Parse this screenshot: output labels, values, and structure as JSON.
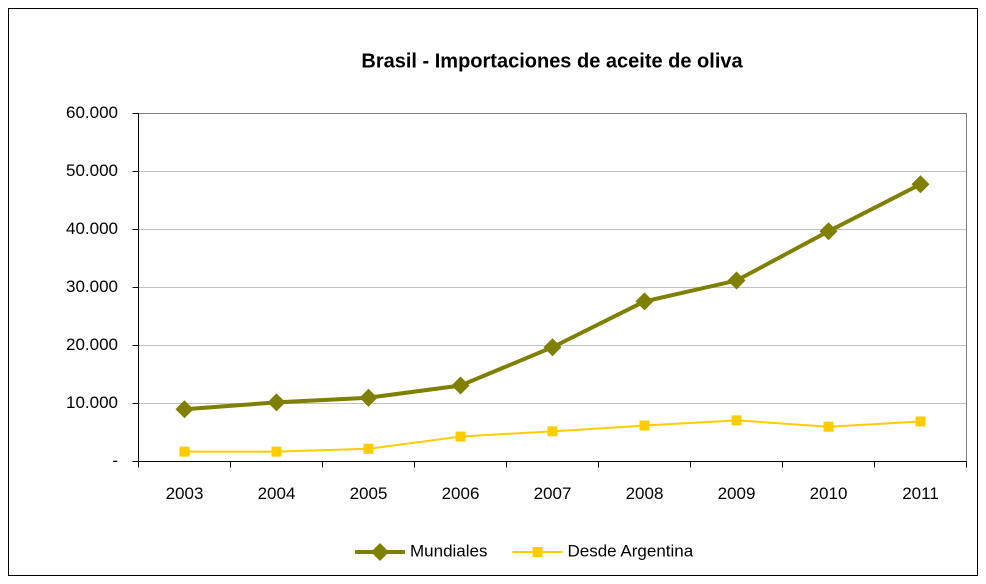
{
  "chart_data": {
    "type": "line",
    "title": "Brasil - Importaciones de aceite de oliva",
    "categories": [
      "2003",
      "2004",
      "2005",
      "2006",
      "2007",
      "2008",
      "2009",
      "2010",
      "2011"
    ],
    "series": [
      {
        "name": "Mundiales",
        "color": "#7f7f00",
        "marker": "diamond",
        "values": [
          9000,
          10200,
          11000,
          13100,
          19700,
          27600,
          31200,
          39700,
          47800
        ]
      },
      {
        "name": "Desde Argentina",
        "color": "#ffcc00",
        "marker": "square",
        "values": [
          1700,
          1700,
          2200,
          4300,
          5200,
          6200,
          7100,
          6000,
          6900
        ]
      }
    ],
    "ylim": [
      0,
      60000
    ],
    "yticks": [
      {
        "value": 0,
        "label": "-"
      },
      {
        "value": 10000,
        "label": "10.000"
      },
      {
        "value": 20000,
        "label": "20.000"
      },
      {
        "value": 30000,
        "label": "30.000"
      },
      {
        "value": 40000,
        "label": "40.000"
      },
      {
        "value": 50000,
        "label": "50.000"
      },
      {
        "value": 60000,
        "label": "60.000"
      }
    ],
    "grid": true,
    "legend": "bottom"
  }
}
